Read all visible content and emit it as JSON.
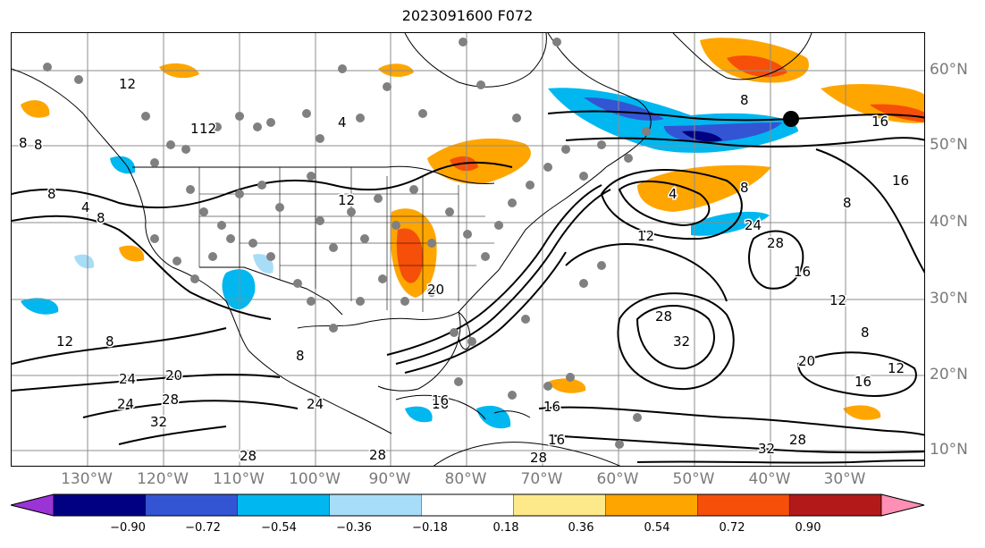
{
  "title": "2023091600 F072",
  "lon_labels": [
    "130°W",
    "120°W",
    "110°W",
    "100°W",
    "90°W",
    "80°W",
    "70°W",
    "60°W",
    "50°W",
    "40°W",
    "30°W"
  ],
  "lat_labels": [
    "60°N",
    "50°N",
    "40°N",
    "30°N",
    "20°N",
    "10°N"
  ],
  "contour_labels": [
    "8",
    "8",
    "12",
    "12",
    "12",
    "4",
    "8",
    "20",
    "28",
    "32",
    "24",
    "8",
    "16",
    "28",
    "24",
    "20",
    "28",
    "28",
    "16",
    "12",
    "8",
    "4",
    "8",
    "16",
    "16",
    "24",
    "28",
    "16",
    "12",
    "12",
    "20",
    "16",
    "12",
    "8",
    "8",
    "28",
    "32",
    "8",
    "12",
    "16",
    "32",
    "28",
    "4",
    "8",
    "24",
    "16"
  ],
  "colorbar": {
    "ticks": [
      "−0.90",
      "−0.72",
      "−0.54",
      "−0.36",
      "−0.18",
      "0.18",
      "0.36",
      "0.54",
      "0.72",
      "0.90"
    ],
    "colors": [
      "#9b34d6",
      "#000080",
      "#3355d4",
      "#00b7f0",
      "#a8ddf7",
      "#ffffff",
      "#fde98a",
      "#ffa500",
      "#f54f0a",
      "#b21a1a",
      "#ff8fb4"
    ],
    "extend": "both"
  },
  "colors": {
    "grid": "#8c8c8c",
    "contour": "#000000",
    "coast": "#000000",
    "station": "#808080"
  },
  "marker_icon": "filled-black-circle"
}
